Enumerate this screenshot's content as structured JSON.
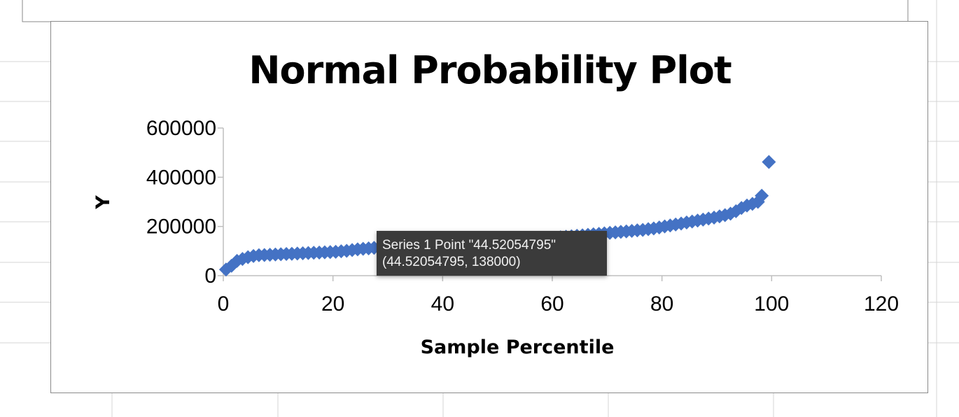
{
  "colors": {
    "marker": "#4472C4",
    "axis": "#bfbfbf",
    "frame": "#8a8a8a",
    "tooltip_bg": "#3b3b3b",
    "tooltip_text": "#f2f2f2"
  },
  "tooltip": {
    "line1": "Series 1 Point \"44.52054795\"",
    "line2": "(44.52054795, 138000)"
  },
  "chart_data": {
    "type": "scatter",
    "title": "Normal Probability Plot",
    "xlabel": "Sample Percentile",
    "ylabel": "Y",
    "xlim": [
      0,
      120
    ],
    "ylim": [
      0,
      600000
    ],
    "x_ticks": [
      "0",
      "20",
      "40",
      "60",
      "80",
      "100",
      "120"
    ],
    "y_ticks": [
      "0",
      "200000",
      "400000",
      "600000"
    ],
    "grid": false,
    "legend": "none",
    "marker": "diamond",
    "series": [
      {
        "x": [
          0.5,
          1.5,
          2.5,
          3.5,
          4.5,
          5.5,
          6.5,
          7.5,
          8.5,
          9.5,
          10.5,
          11.5,
          12.5,
          13.5,
          14.5,
          15.5,
          16.5,
          17.5,
          18.5,
          19.5,
          20.5,
          21.5,
          22.5,
          23.5,
          24.5,
          25.5,
          26.5,
          27.5,
          28.5,
          29.5,
          30.5,
          31.5,
          32.5,
          33.5,
          34.5,
          35.5,
          36.5,
          37.5,
          38.5,
          39.5,
          40.5,
          41.5,
          42.5,
          43.5,
          44.52054795,
          45.5,
          46.5,
          47.5,
          48.5,
          49.5,
          50.5,
          51.5,
          52.5,
          53.5,
          54.5,
          55.5,
          56.5,
          57.5,
          58.5,
          59.5,
          60.5,
          61.5,
          62.5,
          63.5,
          64.5,
          65.5,
          66.5,
          67.5,
          68.5,
          69.5,
          70.5,
          71.5,
          72.5,
          73.5,
          74.5,
          75.5,
          76.5,
          77.5,
          78.5,
          79.5,
          80.5,
          81.5,
          82.5,
          83.5,
          84.5,
          85.5,
          86.5,
          87.5,
          88.5,
          89.5,
          90.5,
          91.5,
          92.5,
          93.5,
          94.5,
          95.5,
          96.5,
          97.5,
          98.2,
          99.5
        ],
        "y": [
          25000,
          40000,
          60000,
          68000,
          75000,
          80000,
          83000,
          84000,
          85000,
          86000,
          87000,
          88000,
          89000,
          90000,
          91000,
          92000,
          93000,
          94000,
          95000,
          96000,
          97000,
          99000,
          101000,
          104000,
          107000,
          109000,
          111000,
          113000,
          115000,
          117000,
          119000,
          121000,
          123000,
          125000,
          127000,
          129000,
          131000,
          133000,
          134000,
          135000,
          136000,
          136500,
          137000,
          137500,
          138000,
          139000,
          140000,
          141000,
          142000,
          143000,
          144000,
          145000,
          146000,
          147000,
          148000,
          149000,
          150000,
          151000,
          152000,
          153000,
          154000,
          156000,
          158000,
          160000,
          162000,
          164000,
          166000,
          168000,
          170000,
          172000,
          174000,
          176000,
          178000,
          180000,
          182000,
          184000,
          186000,
          189000,
          192000,
          196000,
          200000,
          204000,
          208000,
          212000,
          216000,
          220000,
          224000,
          228000,
          232000,
          236000,
          241000,
          246000,
          252000,
          262000,
          275000,
          285000,
          292000,
          300000,
          325000,
          462000
        ]
      }
    ]
  }
}
